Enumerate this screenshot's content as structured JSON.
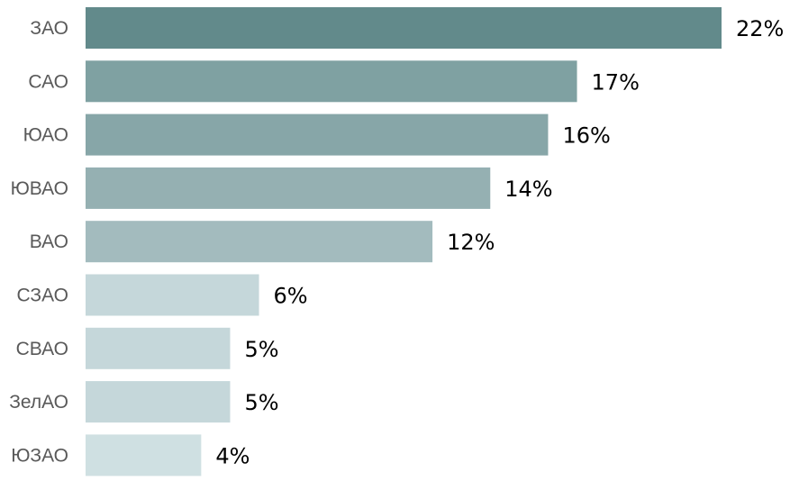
{
  "chart_data": {
    "type": "bar",
    "orientation": "horizontal",
    "categories": [
      "ЗАО",
      "САО",
      "ЮАО",
      "ЮВАО",
      "ВАО",
      "СЗАО",
      "СВАО",
      "ЗелАО",
      "ЮЗАО"
    ],
    "values": [
      22,
      17,
      16,
      14,
      12,
      6,
      5,
      5,
      4
    ],
    "value_labels": [
      "22%",
      "17%",
      "16%",
      "14%",
      "12%",
      "6%",
      "5%",
      "5%",
      "4%"
    ],
    "bar_colors": [
      "#628a8b",
      "#7fa1a2",
      "#87a6a8",
      "#95b0b2",
      "#a3bbbe",
      "#c5d7da",
      "#c5d7da",
      "#c5d7da",
      "#cfe0e2"
    ],
    "title": "",
    "xlabel": "",
    "ylabel": "",
    "xlim": [
      0,
      22
    ],
    "grid": false,
    "legend": false
  }
}
